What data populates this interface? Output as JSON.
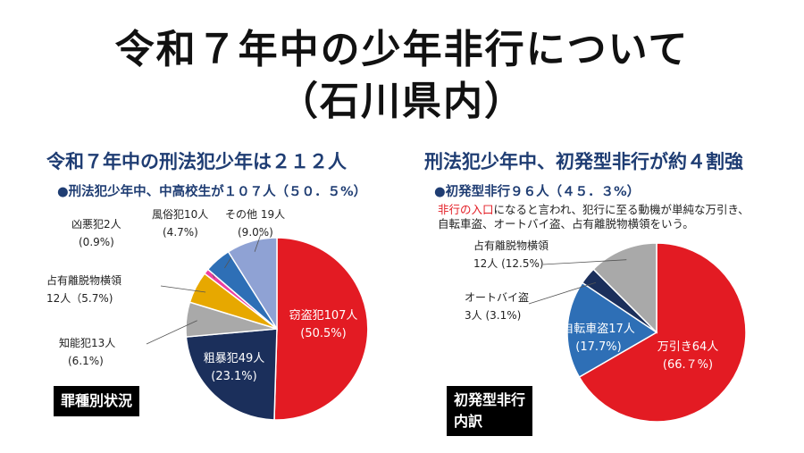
{
  "title": {
    "line1": "令和７年中の少年非行について",
    "line2": "（石川県内）"
  },
  "colors": {
    "heading": "#1f3d73",
    "red": "#e31b23",
    "navy": "#1b2f5b",
    "blue": "#2e6fb6",
    "gray": "#a9a9a9",
    "yellow": "#e7a800",
    "pink": "#ee3fa0",
    "lavender": "#8fa2d4"
  },
  "left": {
    "headline": "令和７年中の刑法犯少年は２１２人",
    "bullet": "●刑法犯少年中、中高校生が１０７人（５０．５%）",
    "box_label": "罪種別状況"
  },
  "right": {
    "headline": "刑法犯少年中、初発型非行が約４割強",
    "bullet": "●初発型非行９６人（４５．３%）",
    "note_red": "非行の入口",
    "note_rest": "になると言われ、犯行に至る動機が単純な万引き、自転車盗、オートバイ盗、占有離脱物横領をいう。",
    "box_label_1": "初発型非行",
    "box_label_2": "内訳"
  },
  "chart_data": [
    {
      "type": "pie",
      "title": "罪種別状況",
      "unit": "人",
      "slices": [
        {
          "label": "窃盗犯",
          "value": 107,
          "percent": "50.5%",
          "name": "窃盗犯107人",
          "pct_text": "(50.5%)",
          "color": "#e31b23"
        },
        {
          "label": "粗暴犯",
          "value": 49,
          "percent": "23.1%",
          "name": "粗暴犯49人",
          "pct_text": "(23.1%)",
          "color": "#1b2f5b"
        },
        {
          "label": "知能犯",
          "value": 13,
          "percent": "6.1%",
          "name": "知能犯13人",
          "pct_text": "(6.1%)",
          "color": "#a9a9a9"
        },
        {
          "label": "占有離脱物横領",
          "value": 12,
          "percent": "5.7%",
          "name": "占有離脱物横領",
          "pct_text": "12人（5.7%)",
          "color": "#e7a800"
        },
        {
          "label": "凶悪犯",
          "value": 2,
          "percent": "0.9%",
          "name": "凶悪犯2人",
          "pct_text": "(0.9%)",
          "color": "#ee3fa0"
        },
        {
          "label": "風俗犯",
          "value": 10,
          "percent": "4.7%",
          "name": "風俗犯10人",
          "pct_text": "(4.7%)",
          "color": "#2e6fb6"
        },
        {
          "label": "その他",
          "value": 19,
          "percent": "9.0%",
          "name": "その他 19人",
          "pct_text": "(9.0%)",
          "color": "#8fa2d4"
        }
      ]
    },
    {
      "type": "pie",
      "title": "初発型非行内訳",
      "unit": "人",
      "slices": [
        {
          "label": "万引き",
          "value": 64,
          "percent": "66.7%",
          "name": "万引き64人",
          "pct_text": "(66.７%)",
          "color": "#e31b23"
        },
        {
          "label": "自転車盗",
          "value": 17,
          "percent": "17.7%",
          "name": "自転車盗17人",
          "pct_text": "(17.7%)",
          "color": "#2e6fb6"
        },
        {
          "label": "オートバイ盗",
          "value": 3,
          "percent": "3.1%",
          "name": "オートバイ盗",
          "pct_text": "3人 (3.1%)",
          "color": "#1b2f5b"
        },
        {
          "label": "占有離脱物横領",
          "value": 12,
          "percent": "12.5%",
          "name": "占有離脱物横領",
          "pct_text": "12人 (12.5%)",
          "color": "#a9a9a9"
        }
      ]
    }
  ]
}
